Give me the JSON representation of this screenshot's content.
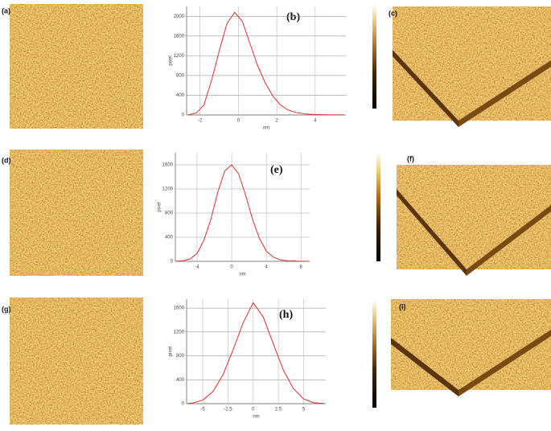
{
  "panel_labels": [
    "(a)",
    "(b)",
    "(c)",
    "(d)",
    "(e)",
    "(f)",
    "(g)",
    "(h)",
    "(i)"
  ],
  "chart_data": [
    {
      "type": "line",
      "xlabel": "nm",
      "ylabel": "pixel",
      "color": "#e0302f",
      "grid": true,
      "x": [
        -2.6,
        -2.2,
        -1.8,
        -1.4,
        -1.0,
        -0.6,
        -0.2,
        0.2,
        0.6,
        1.0,
        1.4,
        1.8,
        2.2,
        2.6,
        3.0,
        3.5,
        4.0,
        4.5,
        5.0,
        5.5
      ],
      "values": [
        5,
        40,
        200,
        700,
        1300,
        1850,
        2080,
        1900,
        1450,
        1000,
        650,
        380,
        200,
        100,
        50,
        20,
        10,
        5,
        3,
        2
      ],
      "xlim": [
        -2.7,
        5.6
      ],
      "xticks": [
        -2,
        0,
        2,
        4
      ],
      "ylim": [
        0,
        2200
      ],
      "yticks": [
        0,
        400,
        800,
        1200,
        1600,
        2000
      ]
    },
    {
      "type": "line",
      "xlabel": "nm",
      "ylabel": "pixel",
      "color": "#e0302f",
      "grid": true,
      "x": [
        -6.4,
        -5.6,
        -4.8,
        -4,
        -3.2,
        -2.4,
        -1.6,
        -0.8,
        0,
        0.8,
        1.6,
        2.4,
        3.2,
        4,
        4.8,
        5.6,
        6.4,
        7.2,
        8,
        8.8
      ],
      "values": [
        2,
        10,
        40,
        130,
        350,
        700,
        1150,
        1500,
        1600,
        1450,
        1100,
        700,
        380,
        170,
        70,
        25,
        10,
        5,
        2,
        1
      ],
      "xlim": [
        -6.5,
        9
      ],
      "xticks": [
        -4,
        0,
        4,
        8
      ],
      "ylim": [
        0,
        1800
      ],
      "yticks": [
        0,
        400,
        800,
        1200,
        1600
      ]
    },
    {
      "type": "line",
      "xlabel": "nm",
      "ylabel": "pixel",
      "color": "#e0302f",
      "grid": true,
      "x": [
        -6.5,
        -6,
        -5,
        -4,
        -3,
        -2,
        -1,
        0,
        1,
        2,
        3,
        4,
        5,
        6,
        7
      ],
      "values": [
        2,
        10,
        60,
        200,
        480,
        900,
        1350,
        1690,
        1450,
        1000,
        560,
        250,
        80,
        15,
        3
      ],
      "xlim": [
        -6.6,
        7.2
      ],
      "xticks": [
        -5,
        -2.5,
        0,
        2.5,
        5
      ],
      "ylim": [
        0,
        1750
      ],
      "yticks": [
        0,
        400,
        800,
        1200,
        1600
      ]
    }
  ]
}
